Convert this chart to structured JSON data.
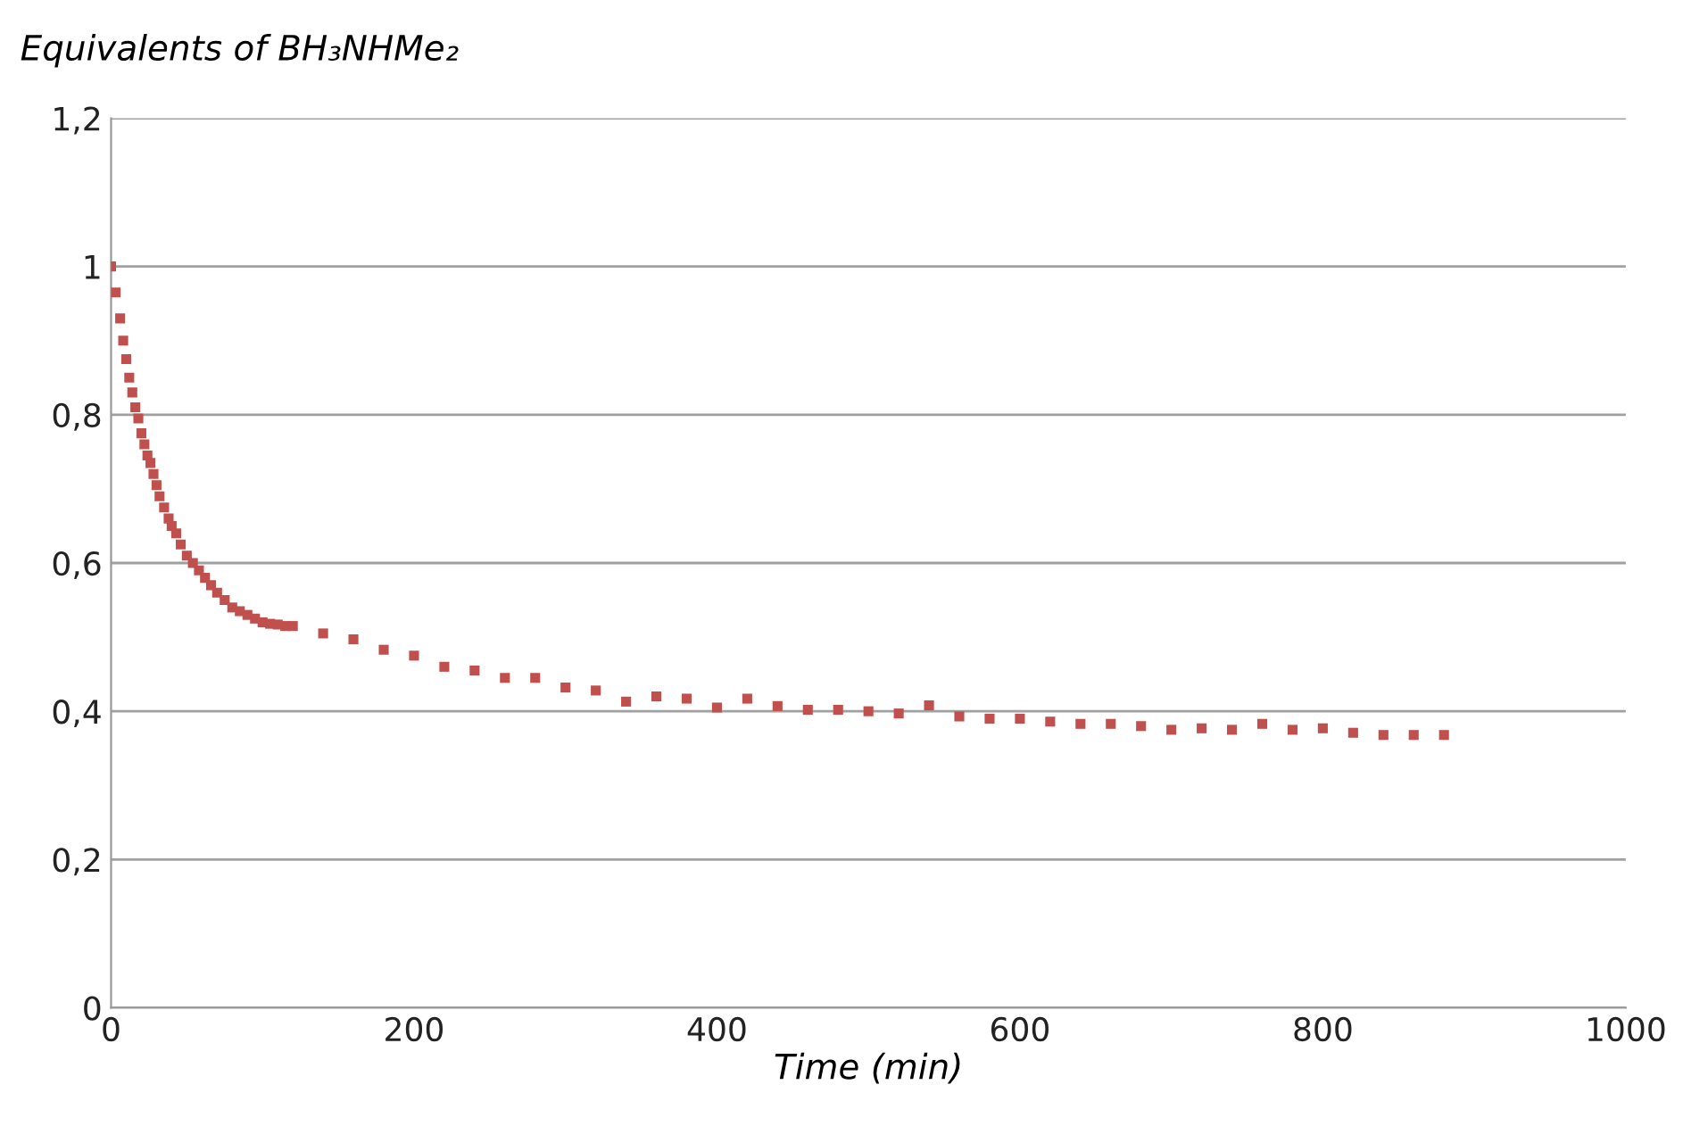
{
  "chart_data": {
    "type": "scatter",
    "ylabel": "Equivalents of BH₃NHMe₂",
    "xlabel": "Time (min)",
    "x": [
      0,
      3,
      6,
      8,
      10,
      12,
      14,
      16,
      18,
      20,
      22,
      24,
      26,
      28,
      30,
      32,
      35,
      38,
      40,
      43,
      46,
      50,
      54,
      58,
      62,
      66,
      70,
      75,
      80,
      85,
      90,
      95,
      100,
      105,
      110,
      115,
      120,
      140,
      160,
      180,
      200,
      220,
      240,
      260,
      280,
      300,
      320,
      340,
      360,
      380,
      400,
      420,
      440,
      460,
      480,
      500,
      520,
      540,
      560,
      580,
      600,
      620,
      640,
      660,
      680,
      700,
      720,
      740,
      760,
      780,
      800,
      820,
      840,
      860,
      880
    ],
    "series": [
      {
        "color": "#c0504d",
        "values": [
          1.0,
          0.965,
          0.93,
          0.9,
          0.875,
          0.85,
          0.83,
          0.81,
          0.795,
          0.775,
          0.76,
          0.745,
          0.735,
          0.72,
          0.705,
          0.69,
          0.675,
          0.66,
          0.65,
          0.64,
          0.625,
          0.61,
          0.6,
          0.59,
          0.58,
          0.57,
          0.56,
          0.55,
          0.54,
          0.535,
          0.53,
          0.525,
          0.52,
          0.518,
          0.517,
          0.515,
          0.515,
          0.505,
          0.497,
          0.483,
          0.475,
          0.46,
          0.455,
          0.445,
          0.445,
          0.432,
          0.428,
          0.413,
          0.42,
          0.417,
          0.405,
          0.417,
          0.407,
          0.402,
          0.402,
          0.4,
          0.397,
          0.408,
          0.393,
          0.39,
          0.39,
          0.386,
          0.383,
          0.383,
          0.38,
          0.375,
          0.377,
          0.375,
          0.383,
          0.375,
          0.377,
          0.371,
          0.368,
          0.368,
          0.368
        ]
      }
    ],
    "xlim": [
      0,
      1000
    ],
    "xticks": [
      0,
      200,
      400,
      600,
      800,
      1000
    ],
    "ylim": [
      0,
      1.2
    ],
    "yticks": [
      0,
      {
        "value": 0.2,
        "label": "0,2"
      },
      {
        "value": 0.4,
        "label": "0,4"
      },
      {
        "value": 0.6,
        "label": "0,6"
      },
      {
        "value": 0.8,
        "label": "0,8"
      },
      1,
      {
        "value": 1.2,
        "label": "1,2"
      }
    ],
    "grid": "y",
    "marker": "square"
  }
}
